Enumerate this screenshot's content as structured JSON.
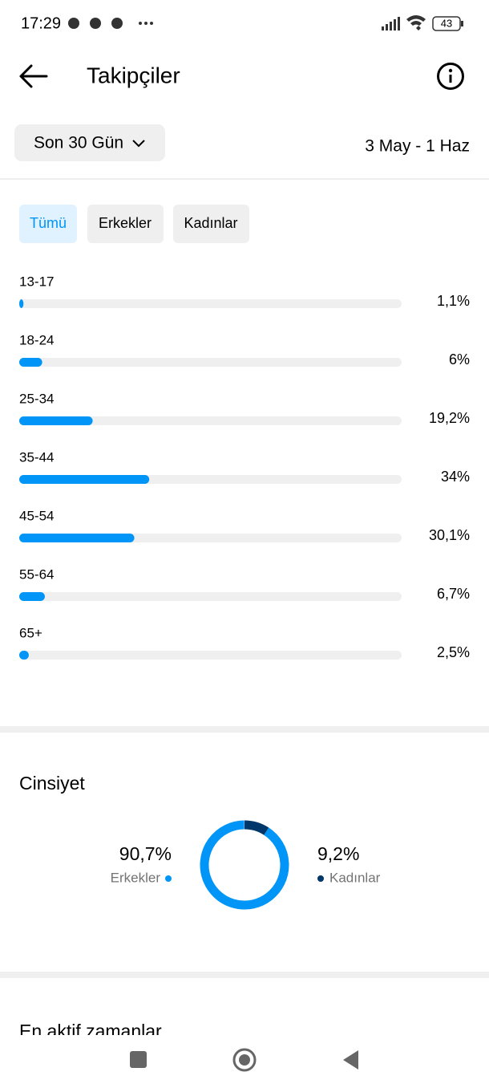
{
  "status_bar": {
    "time": "17:29",
    "battery": "43"
  },
  "header": {
    "title": "Takipçiler"
  },
  "filter": {
    "period": "Son 30 Gün",
    "date_range": "3 May - 1 Haz"
  },
  "tabs": [
    "Tümü",
    "Erkekler",
    "Kadınlar"
  ],
  "age_chart": {
    "type": "bar",
    "orientation": "horizontal",
    "categories": [
      "13-17",
      "18-24",
      "25-34",
      "35-44",
      "45-54",
      "55-64",
      "65+"
    ],
    "values": [
      1.1,
      6,
      19.2,
      34,
      30.1,
      6.7,
      2.5
    ],
    "value_labels": [
      "1,1%",
      "6%",
      "19,2%",
      "34%",
      "30,1%",
      "6,7%",
      "2,5%"
    ],
    "xlim": [
      0,
      100
    ],
    "color": "#0095f6"
  },
  "gender_chart": {
    "type": "donut",
    "title": "Cinsiyet",
    "categories": [
      "Erkekler",
      "Kadınlar"
    ],
    "values": [
      90.7,
      9.2
    ],
    "value_labels": [
      "90,7%",
      "9,2%"
    ],
    "colors": [
      "#0095f6",
      "#00376b"
    ]
  },
  "next_section": {
    "title": "En aktif zamanlar"
  }
}
